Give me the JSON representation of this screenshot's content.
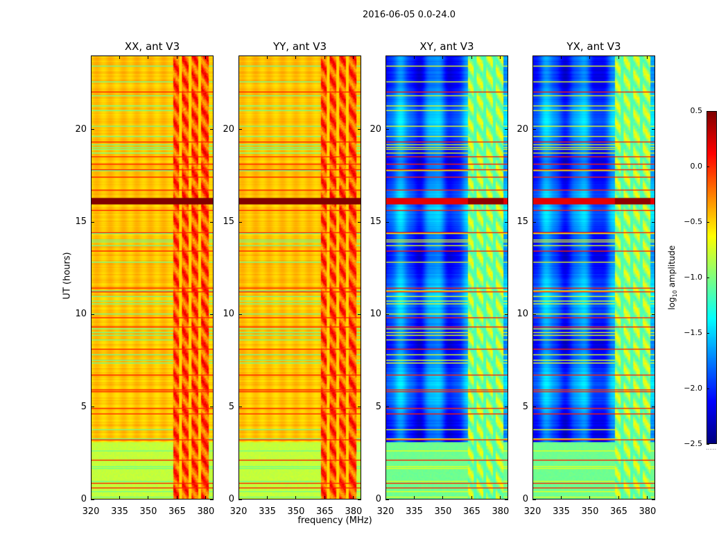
{
  "chart_data": {
    "type": "heatmap",
    "title": "2016-06-05 0.0-24.0",
    "xlabel": "frequency (MHz)",
    "ylabel": "UT (hours)",
    "xlim": [
      320,
      384
    ],
    "ylim": [
      0,
      24
    ],
    "xticks": [
      320,
      335,
      350,
      365,
      380
    ],
    "yticks": [
      0,
      5,
      10,
      15,
      20
    ],
    "colormap": "jet",
    "colorbar": {
      "label_main": "log",
      "label_sub": "10",
      "label_rest": " amplitude",
      "range": [
        -2.5,
        0.5
      ],
      "ticks": [
        "0.5",
        "0.0",
        "−0.5",
        "−1.0",
        "−1.5",
        "−2.0",
        "−2.5"
      ],
      "tick_values": [
        0.5,
        0.0,
        -0.5,
        -1.0,
        -1.5,
        -2.0,
        -2.5
      ],
      "footer": "......"
    },
    "panels": [
      {
        "title": "XX, ant V3",
        "base_level": -0.45,
        "rfi_band_level": -0.1,
        "low_period_level": -0.8
      },
      {
        "title": "YY, ant V3",
        "base_level": -0.45,
        "rfi_band_level": -0.1,
        "low_period_level": -0.8
      },
      {
        "title": "XY, ant V3",
        "base_level": -1.85,
        "rfi_band_level": -0.9,
        "low_period_level": -1.05
      },
      {
        "title": "YX, ant V3",
        "base_level": -1.85,
        "rfi_band_level": -0.9,
        "low_period_level": -1.05
      }
    ],
    "features": {
      "rfi_band_mhz": [
        363,
        381
      ],
      "low_period_hours": [
        0,
        3.1
      ],
      "saturated_band_hours": [
        15.95,
        16.25
      ],
      "bright_line_hours": [
        0.6,
        0.85,
        2.1,
        3.2,
        4.6,
        4.9,
        5.8,
        5.9,
        6.7,
        8.1,
        9.3,
        9.8,
        11.2,
        11.4,
        13.4,
        14.4,
        15.6,
        16.7,
        17.4,
        17.8,
        18.1,
        18.5,
        19.3,
        22.0
      ]
    }
  }
}
